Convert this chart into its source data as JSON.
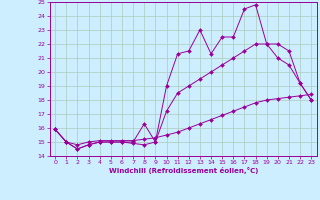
{
  "xlabel": "Windchill (Refroidissement éolien,°C)",
  "bg_color": "#cceeff",
  "line_color": "#990099",
  "grid_color": "#aaccbb",
  "xlim": [
    -0.5,
    23.5
  ],
  "ylim": [
    14,
    25
  ],
  "xticks": [
    0,
    1,
    2,
    3,
    4,
    5,
    6,
    7,
    8,
    9,
    10,
    11,
    12,
    13,
    14,
    15,
    16,
    17,
    18,
    19,
    20,
    21,
    22,
    23
  ],
  "yticks": [
    14,
    15,
    16,
    17,
    18,
    19,
    20,
    21,
    22,
    23,
    24,
    25
  ],
  "series1_x": [
    0,
    1,
    2,
    3,
    4,
    5,
    6,
    7,
    8,
    9,
    10,
    11,
    12,
    13,
    14,
    15,
    16,
    17,
    18,
    19,
    20,
    21,
    22,
    23
  ],
  "series1_y": [
    15.9,
    15.0,
    14.5,
    14.8,
    15.0,
    15.0,
    15.0,
    14.9,
    14.8,
    15.0,
    19.0,
    21.3,
    21.5,
    23.0,
    21.3,
    22.5,
    22.5,
    24.5,
    24.8,
    22.0,
    21.0,
    20.5,
    19.2,
    18.0
  ],
  "series2_x": [
    0,
    1,
    2,
    3,
    4,
    5,
    6,
    7,
    8,
    9,
    10,
    11,
    12,
    13,
    14,
    15,
    16,
    17,
    18,
    19,
    20,
    21,
    22,
    23
  ],
  "series2_y": [
    15.9,
    15.0,
    14.5,
    14.8,
    15.0,
    15.0,
    15.0,
    15.0,
    16.3,
    15.0,
    17.2,
    18.5,
    19.0,
    19.5,
    20.0,
    20.5,
    21.0,
    21.5,
    22.0,
    22.0,
    22.0,
    21.5,
    19.2,
    18.0
  ],
  "series3_x": [
    0,
    1,
    2,
    3,
    4,
    5,
    6,
    7,
    8,
    9,
    10,
    11,
    12,
    13,
    14,
    15,
    16,
    17,
    18,
    19,
    20,
    21,
    22,
    23
  ],
  "series3_y": [
    15.9,
    15.0,
    14.8,
    15.0,
    15.1,
    15.1,
    15.1,
    15.1,
    15.2,
    15.3,
    15.5,
    15.7,
    16.0,
    16.3,
    16.6,
    16.9,
    17.2,
    17.5,
    17.8,
    18.0,
    18.1,
    18.2,
    18.3,
    18.4
  ]
}
